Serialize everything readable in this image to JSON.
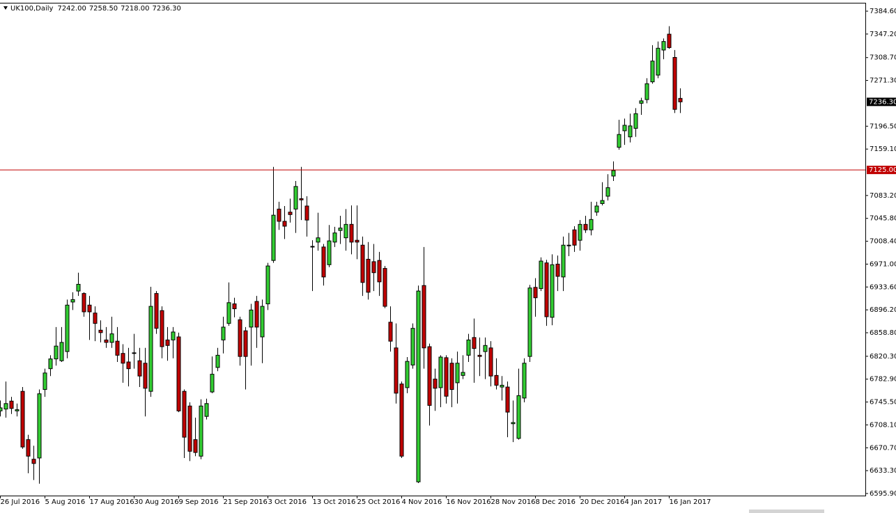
{
  "chart_data": {
    "type": "candlestick",
    "title": "UK100,Daily",
    "info_labels": [
      "7242.00",
      "7258.50",
      "7218.00",
      "7236.30"
    ],
    "categories": [
      "26 Jul 2016",
      null,
      null,
      null,
      null,
      null,
      null,
      null,
      "5 Aug 2016",
      null,
      null,
      null,
      null,
      null,
      null,
      null,
      "17 Aug 2016",
      null,
      null,
      null,
      null,
      null,
      null,
      null,
      "30 Aug 2016",
      null,
      null,
      null,
      null,
      null,
      null,
      null,
      "9 Sep 2016",
      null,
      null,
      null,
      null,
      null,
      null,
      null,
      "21 Sep 2016",
      null,
      null,
      null,
      null,
      null,
      null,
      null,
      "3 Oct 2016",
      null,
      null,
      null,
      null,
      null,
      null,
      null,
      "13 Oct 2016",
      null,
      null,
      null,
      null,
      null,
      null,
      null,
      "25 Oct 2016",
      null,
      null,
      null,
      null,
      null,
      null,
      null,
      "4 Nov 2016",
      null,
      null,
      null,
      null,
      null,
      null,
      null,
      "16 Nov 2016",
      null,
      null,
      null,
      null,
      null,
      null,
      null,
      "28 Nov 2016",
      null,
      null,
      null,
      null,
      null,
      null,
      null,
      "8 Dec 2016",
      null,
      null,
      null,
      null,
      null,
      null,
      null,
      "20 Dec 2016",
      null,
      null,
      null,
      null,
      null,
      null,
      null,
      "4 Jan 2017",
      null,
      null,
      null,
      null,
      null,
      null,
      null,
      "16 Jan 2017",
      null,
      null
    ],
    "open": [
      6731,
      6734,
      6747,
      6731,
      6763,
      6684,
      6652,
      6654,
      6766,
      6800,
      6816,
      6813,
      6828,
      6909,
      6927,
      6923,
      6904,
      6891,
      6863,
      6847,
      6843,
      6845,
      6825,
      6811,
      6825,
      6813,
      6809,
      6763,
      6923,
      6895,
      6847,
      6847,
      6852,
      6763,
      6739,
      6684,
      6657,
      6722,
      6762,
      6802,
      6847,
      6874,
      6906,
      6880,
      6862,
      6868,
      6910,
      6852,
      6906,
      6977,
      7061,
      7041,
      7056,
      7061,
      7078,
      7066,
      6999,
      7007,
      6999,
      6970,
      7007,
      7026,
      7014,
      7036,
      7010,
      7002,
      6979,
      6975,
      6977,
      6964,
      6876,
      6834,
      6775,
      6769,
      6806,
      6615,
      6936,
      6836,
      6783,
      6769,
      6818,
      6809,
      6777,
      6789,
      6822,
      6851,
      6822,
      6828,
      6834,
      6789,
      6770,
      6770,
      6710,
      6686,
      6752,
      6820,
      6933,
      6931,
      6973,
      6884,
      6971,
      6950,
      7002,
      7027,
      7010,
      7036,
      7027,
      7056,
      7070,
      7082,
      7115,
      7162,
      7189,
      7179,
      7193,
      7234,
      7240,
      7269,
      7280,
      7321,
      7347,
      7309,
      7242
    ],
    "high": [
      6748,
      6779,
      6754,
      6743,
      6770,
      6692,
      6674,
      6766,
      6800,
      6822,
      6868,
      6868,
      6913,
      6925,
      6957,
      6925,
      6919,
      6902,
      6879,
      6868,
      6885,
      6868,
      6840,
      6834,
      6857,
      6834,
      6834,
      6934,
      6927,
      6902,
      6868,
      6868,
      6859,
      6766,
      6745,
      6720,
      6750,
      6751,
      6820,
      6834,
      6885,
      6941,
      6916,
      6885,
      6868,
      6906,
      6919,
      6913,
      6973,
      7130,
      7073,
      7066,
      7078,
      7107,
      7130,
      7082,
      7010,
      7055,
      7004,
      7035,
      7032,
      7050,
      7061,
      7067,
      7067,
      7016,
      7007,
      7004,
      6991,
      6968,
      6902,
      6874,
      6779,
      6819,
      6874,
      6936,
      6999,
      6841,
      6800,
      6822,
      6822,
      6817,
      6828,
      6822,
      6857,
      6882,
      6851,
      6851,
      6845,
      6817,
      6788,
      6779,
      6748,
      6800,
      6817,
      6937,
      6948,
      6982,
      6978,
      6987,
      6985,
      7016,
      7022,
      7033,
      7043,
      7050,
      7073,
      7073,
      7105,
      7118,
      7139,
      7207,
      7209,
      7217,
      7226,
      7243,
      7275,
      7329,
      7335,
      7340,
      7360,
      7321,
      7258.5
    ],
    "low": [
      6722,
      6720,
      6726,
      6722,
      6669,
      6629,
      6618,
      6612,
      6754,
      6788,
      6805,
      6811,
      6817,
      6896,
      6919,
      6885,
      6847,
      6845,
      6843,
      6834,
      6834,
      6811,
      6777,
      6771,
      6800,
      6770,
      6722,
      6754,
      6857,
      6817,
      6813,
      6817,
      6729,
      6654,
      6649,
      6657,
      6652,
      6717,
      6760,
      6796,
      6825,
      6870,
      6884,
      6805,
      6766,
      6805,
      6834,
      6809,
      6896,
      6973,
      7027,
      7012,
      7039,
      7022,
      7043,
      7016,
      6927,
      6993,
      6936,
      6966,
      6999,
      7004,
      6993,
      6987,
      6979,
      6919,
      6913,
      6927,
      6919,
      6899,
      6828,
      6743,
      6654,
      6760,
      6800,
      6613,
      6800,
      6707,
      6731,
      6737,
      6743,
      6737,
      6743,
      6783,
      6811,
      6777,
      6788,
      6783,
      6771,
      6766,
      6748,
      6688,
      6680,
      6684,
      6745,
      6811,
      6885,
      6927,
      6870,
      6871,
      6927,
      6927,
      6984,
      6991,
      6993,
      7022,
      7018,
      7050,
      7067,
      7075,
      7107,
      7158,
      7166,
      7170,
      7179,
      7215,
      7234,
      7266,
      7275,
      7306,
      7323,
      7218,
      7218
    ],
    "close": [
      6736,
      6743,
      6735,
      6733,
      6672,
      6657,
      6645,
      6759,
      6793,
      6816,
      6837,
      6843,
      6904,
      6913,
      6938,
      6893,
      6893,
      6874,
      6859,
      6843,
      6857,
      6822,
      6809,
      6800,
      6826,
      6788,
      6768,
      6902,
      6866,
      6836,
      6838,
      6860,
      6731,
      6688,
      6665,
      6663,
      6739,
      6743,
      6791,
      6822,
      6868,
      6908,
      6898,
      6820,
      6820,
      6896,
      6868,
      6902,
      6968,
      7051,
      7041,
      7033,
      7052,
      7098,
      7076,
      7043,
      7000,
      7014,
      6950,
      7009,
      7022,
      7030,
      7036,
      7007,
      7007,
      6941,
      6925,
      6957,
      6942,
      6902,
      6845,
      6760,
      6657,
      6812,
      6866,
      6927,
      6834,
      6740,
      6768,
      6819,
      6755,
      6766,
      6809,
      6794,
      6847,
      6833,
      6820,
      6838,
      6788,
      6773,
      6773,
      6729,
      6712,
      6756,
      6809,
      6932,
      6916,
      6976,
      6885,
      6970,
      6951,
      7002,
      7001,
      7002,
      7036,
      7027,
      7044,
      7066,
      7075,
      7096,
      7124,
      7183,
      7198,
      7197,
      7217,
      7238,
      7266,
      7303,
      7324,
      7335,
      7325,
      7224,
      7236.3
    ],
    "up_color": "#32cd32",
    "down_color": "#c00000",
    "ylim": [
      6592.5,
      7398.3
    ],
    "yticks": [
      {
        "value": 7384.6,
        "label": "7384.60"
      },
      {
        "value": 7347.2,
        "label": "7347.20"
      },
      {
        "value": 7308.7,
        "label": "7308.70"
      },
      {
        "value": 7271.3,
        "label": "7271.30"
      },
      {
        "value": 7196.5,
        "label": "7196.50"
      },
      {
        "value": 7159.1,
        "label": "7159.10"
      },
      {
        "value": 7083.2,
        "label": "7083.20"
      },
      {
        "value": 7045.8,
        "label": "7045.80"
      },
      {
        "value": 7008.4,
        "label": "7008.40"
      },
      {
        "value": 6971,
        "label": "6971.00"
      },
      {
        "value": 6933.6,
        "label": "6933.60"
      },
      {
        "value": 6896.2,
        "label": "6896.20"
      },
      {
        "value": 6858.8,
        "label": "6858.80"
      },
      {
        "value": 6820.3,
        "label": "6820.30"
      },
      {
        "value": 6782.9,
        "label": "6782.90"
      },
      {
        "value": 6745.5,
        "label": "6745.50"
      },
      {
        "value": 6708.1,
        "label": "6708.10"
      },
      {
        "value": 6670.7,
        "label": "6670.70"
      },
      {
        "value": 6633.3,
        "label": "6633.30"
      },
      {
        "value": 6595.9,
        "label": "6595.90"
      }
    ],
    "hline": {
      "value": 7125,
      "label": "7125.00",
      "color": "#c00000"
    },
    "last_price": {
      "value": 7236.3,
      "label": "7236.30"
    }
  }
}
